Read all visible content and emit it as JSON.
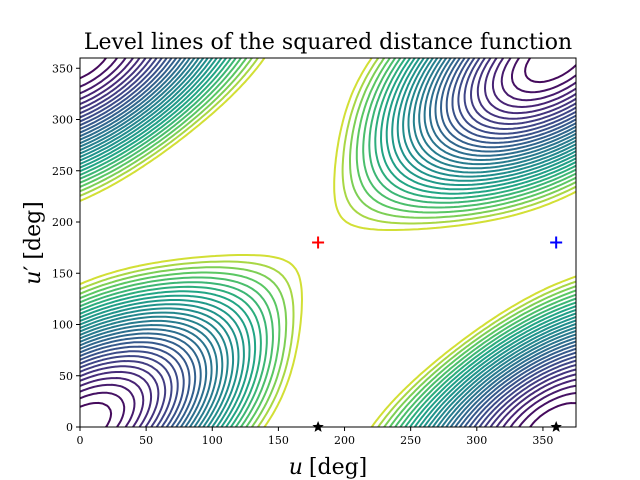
{
  "chart_data": {
    "type": "contour",
    "title": "Level lines of the squared distance function",
    "xlabel_var": "u",
    "xlabel_unit": "[deg]",
    "ylabel_var": "u",
    "ylabel_prime": "′",
    "ylabel_unit": "[deg]",
    "xlim": [
      0,
      375
    ],
    "ylim": [
      0,
      360
    ],
    "xticks": [
      0,
      50,
      100,
      150,
      200,
      250,
      300,
      350
    ],
    "yticks": [
      0,
      50,
      100,
      150,
      200,
      250,
      300,
      350
    ],
    "colormap": "viridis",
    "contour_levels": 30,
    "max_point": {
      "x": 180,
      "y": 180
    },
    "markers": [
      {
        "label": "red-plus",
        "x": 180,
        "y": 180,
        "color": "#ff0000",
        "symbol": "+"
      },
      {
        "label": "blue-plus",
        "x": 360,
        "y": 180,
        "color": "#0000ff",
        "symbol": "+"
      },
      {
        "label": "black-star-1",
        "x": 180,
        "y": 0,
        "color": "#000000",
        "symbol": "*"
      },
      {
        "label": "black-star-2",
        "x": 360,
        "y": 0,
        "color": "#000000",
        "symbol": "*"
      }
    ]
  }
}
